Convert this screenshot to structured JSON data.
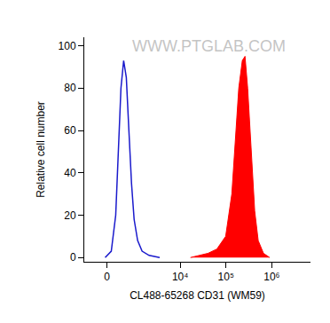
{
  "chart_data": {
    "type": "line",
    "x_label": "CL488-65268 CD31 (WM59)",
    "y_label": "Relative cell number",
    "annotations": [
      {
        "text": "WWW.PTGLAB.COM"
      }
    ],
    "xlim": [
      -700,
      7000000
    ],
    "xticks": [
      0,
      {
        "value": 10000,
        "label": "10⁴"
      },
      {
        "value": 100000,
        "label": "10⁵"
      },
      {
        "value": 1000000,
        "label": "10⁶"
      }
    ],
    "ylim": [
      -2,
      104
    ],
    "yticks": [
      0,
      20,
      40,
      60,
      80,
      100
    ],
    "grid": false,
    "series": [
      {
        "type": "line",
        "color": "#1a1acc",
        "x": [
          -44,
          111,
          229,
          304,
          384,
          473,
          570,
          673,
          790,
          920,
          1120,
          1425,
          2060,
          3540
        ],
        "values": [
          0,
          3,
          20,
          50,
          80,
          93,
          85,
          60,
          35,
          18,
          8,
          3,
          1,
          0
        ]
      },
      {
        "type": "area",
        "color": "#ff0000",
        "x": [
          16700,
          26000,
          40500,
          63100,
          98200,
          134000,
          160000,
          190000,
          227000,
          260000,
          297000,
          354000,
          423000,
          505000,
          658000,
          898000
        ],
        "values": [
          0,
          1,
          2,
          4,
          10,
          30,
          55,
          80,
          93,
          95,
          80,
          50,
          22,
          8,
          2,
          0
        ]
      }
    ]
  }
}
